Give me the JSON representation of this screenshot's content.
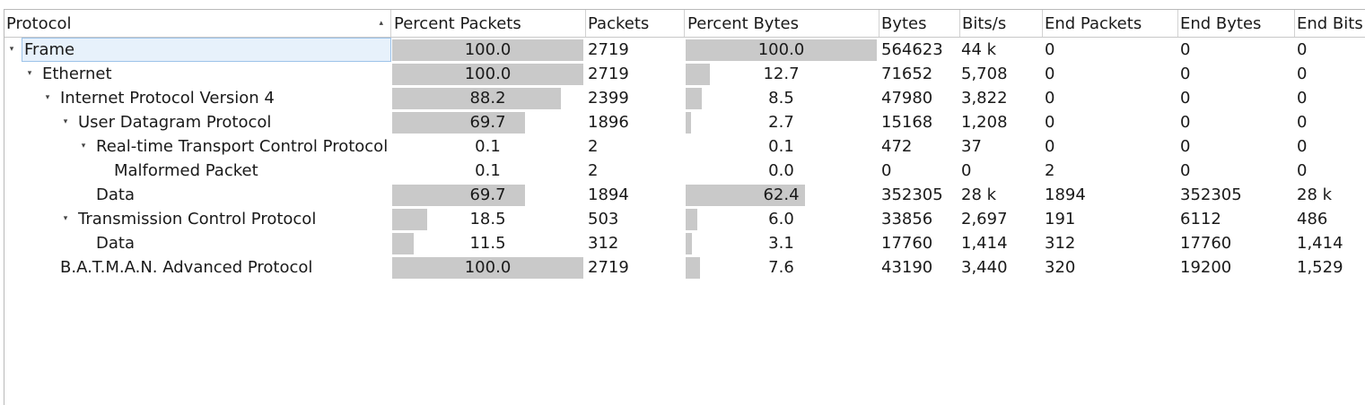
{
  "columns": [
    {
      "label": "Protocol",
      "sort": "▴"
    },
    {
      "label": "Percent Packets"
    },
    {
      "label": "Packets"
    },
    {
      "label": "Percent Bytes"
    },
    {
      "label": "Bytes"
    },
    {
      "label": "Bits/s"
    },
    {
      "label": "End Packets"
    },
    {
      "label": "End Bytes"
    },
    {
      "label": "End Bits"
    }
  ],
  "rows": [
    {
      "name": "Frame",
      "level": 0,
      "expanded": true,
      "selected": true,
      "percent_packets": 100.0,
      "percent_packets_text": "100.0",
      "packets": "2719",
      "percent_bytes": 100.0,
      "percent_bytes_text": "100.0",
      "bytes": "564623",
      "bits_s": "44 k",
      "end_packets": "0",
      "end_bytes": "0",
      "end_bits": "0"
    },
    {
      "name": "Ethernet",
      "level": 1,
      "expanded": true,
      "percent_packets": 100.0,
      "percent_packets_text": "100.0",
      "packets": "2719",
      "percent_bytes": 12.7,
      "percent_bytes_text": "12.7",
      "bytes": "71652",
      "bits_s": "5,708",
      "end_packets": "0",
      "end_bytes": "0",
      "end_bits": "0"
    },
    {
      "name": "Internet Protocol Version 4",
      "level": 2,
      "expanded": true,
      "percent_packets": 88.2,
      "percent_packets_text": "88.2",
      "packets": "2399",
      "percent_bytes": 8.5,
      "percent_bytes_text": "8.5",
      "bytes": "47980",
      "bits_s": "3,822",
      "end_packets": "0",
      "end_bytes": "0",
      "end_bits": "0"
    },
    {
      "name": "User Datagram Protocol",
      "level": 3,
      "expanded": true,
      "percent_packets": 69.7,
      "percent_packets_text": "69.7",
      "packets": "1896",
      "percent_bytes": 2.7,
      "percent_bytes_text": "2.7",
      "bytes": "15168",
      "bits_s": "1,208",
      "end_packets": "0",
      "end_bytes": "0",
      "end_bits": "0"
    },
    {
      "name": "Real-time Transport Control Protocol",
      "level": 4,
      "expanded": true,
      "percent_packets": 0.1,
      "percent_packets_text": "0.1",
      "packets": "2",
      "percent_bytes": 0.1,
      "percent_bytes_text": "0.1",
      "bytes": "472",
      "bits_s": "37",
      "end_packets": "0",
      "end_bytes": "0",
      "end_bits": "0"
    },
    {
      "name": "Malformed Packet",
      "level": 5,
      "expanded": false,
      "percent_packets": 0.1,
      "percent_packets_text": "0.1",
      "packets": "2",
      "percent_bytes": 0.0,
      "percent_bytes_text": "0.0",
      "bytes": "0",
      "bits_s": "0",
      "end_packets": "2",
      "end_bytes": "0",
      "end_bits": "0"
    },
    {
      "name": "Data",
      "level": 4,
      "expanded": false,
      "percent_packets": 69.7,
      "percent_packets_text": "69.7",
      "packets": "1894",
      "percent_bytes": 62.4,
      "percent_bytes_text": "62.4",
      "bytes": "352305",
      "bits_s": "28 k",
      "end_packets": "1894",
      "end_bytes": "352305",
      "end_bits": "28 k"
    },
    {
      "name": "Transmission Control Protocol",
      "level": 3,
      "expanded": true,
      "percent_packets": 18.5,
      "percent_packets_text": "18.5",
      "packets": "503",
      "percent_bytes": 6.0,
      "percent_bytes_text": "6.0",
      "bytes": "33856",
      "bits_s": "2,697",
      "end_packets": "191",
      "end_bytes": "6112",
      "end_bits": "486"
    },
    {
      "name": "Data",
      "level": 4,
      "expanded": false,
      "percent_packets": 11.5,
      "percent_packets_text": "11.5",
      "packets": "312",
      "percent_bytes": 3.1,
      "percent_bytes_text": "3.1",
      "bytes": "17760",
      "bits_s": "1,414",
      "end_packets": "312",
      "end_bytes": "17760",
      "end_bits": "1,414"
    },
    {
      "name": "B.A.T.M.A.N. Advanced Protocol",
      "level": 2,
      "expanded": false,
      "percent_packets": 100.0,
      "percent_packets_text": "100.0",
      "packets": "2719",
      "percent_bytes": 7.6,
      "percent_bytes_text": "7.6",
      "bytes": "43190",
      "bits_s": "3,440",
      "end_packets": "320",
      "end_bytes": "19200",
      "end_bits": "1,529"
    }
  ],
  "colors": {
    "bar": "#c9c9c9",
    "selection": "#e7f1fb",
    "selection_border": "#9dc3e9"
  },
  "icons": {
    "expanded": "chevron-down-icon",
    "sort": "sort-ascending-icon"
  }
}
